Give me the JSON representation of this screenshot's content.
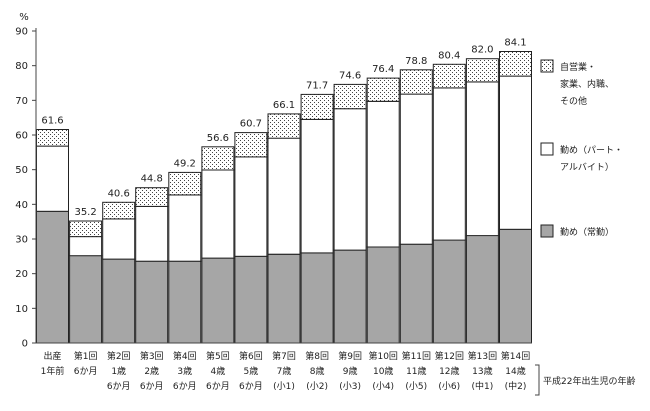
{
  "chart_data": {
    "type": "bar",
    "stacked": true,
    "y_unit": "%",
    "ylim": [
      0,
      90
    ],
    "yticks": [
      0,
      10,
      20,
      30,
      40,
      50,
      60,
      70,
      80,
      90
    ],
    "grid": false,
    "categories": [
      [
        "出産",
        "1年前"
      ],
      [
        "第1回",
        "6か月"
      ],
      [
        "第2回",
        "1歳",
        "6か月"
      ],
      [
        "第3回",
        "2歳",
        "6か月"
      ],
      [
        "第4回",
        "3歳",
        "6か月"
      ],
      [
        "第5回",
        "4歳",
        "6か月"
      ],
      [
        "第6回",
        "5歳",
        "6か月"
      ],
      [
        "第7回",
        "7歳",
        "(小1)"
      ],
      [
        "第8回",
        "8歳",
        "(小2)"
      ],
      [
        "第9回",
        "9歳",
        "(小3)"
      ],
      [
        "第10回",
        "10歳",
        "(小4)"
      ],
      [
        "第11回",
        "11歳",
        "(小5)"
      ],
      [
        "第12回",
        "12歳",
        "(小6)"
      ],
      [
        "第13回",
        "13歳",
        "(中1)"
      ],
      [
        "第14回",
        "14歳",
        "(中2)"
      ]
    ],
    "axis_note": "平成22年出生児の年齢",
    "series": [
      {
        "name": "勤め（常勤）",
        "color": "#a6a6a6",
        "pattern": "solid",
        "values": [
          38.0,
          25.2,
          24.2,
          23.6,
          23.6,
          24.5,
          25.0,
          25.6,
          26.0,
          26.8,
          27.7,
          28.5,
          29.7,
          31.0,
          32.8
        ]
      },
      {
        "name": "勤め（パート・アルバイト）",
        "color": "#ffffff",
        "pattern": "solid",
        "values": [
          18.8,
          5.5,
          11.6,
          15.8,
          19.1,
          25.4,
          28.7,
          33.5,
          38.5,
          40.8,
          42.0,
          43.3,
          43.9,
          44.3,
          44.2
        ]
      },
      {
        "name": "自営業・家業、内職、その他",
        "color": "#ffffff",
        "pattern": "dots",
        "values": [
          4.8,
          4.5,
          4.8,
          5.4,
          6.5,
          6.7,
          7.0,
          7.0,
          7.2,
          7.0,
          6.7,
          7.0,
          6.8,
          6.7,
          7.1
        ]
      }
    ],
    "totals": [
      "61.6",
      "35.2",
      "40.6",
      "44.8",
      "49.2",
      "56.6",
      "60.7",
      "66.1",
      "71.7",
      "74.6",
      "76.4",
      "78.8",
      "80.4",
      "82.0",
      "84.1"
    ],
    "legend_position": "right",
    "legend": [
      {
        "series": 2,
        "lines": [
          "自営業・",
          "家業、内職、",
          "その他"
        ]
      },
      {
        "series": 1,
        "lines": [
          "勤め（パート・",
          "アルバイト）"
        ]
      },
      {
        "series": 0,
        "lines": [
          "勤め（常勤）"
        ]
      }
    ]
  }
}
